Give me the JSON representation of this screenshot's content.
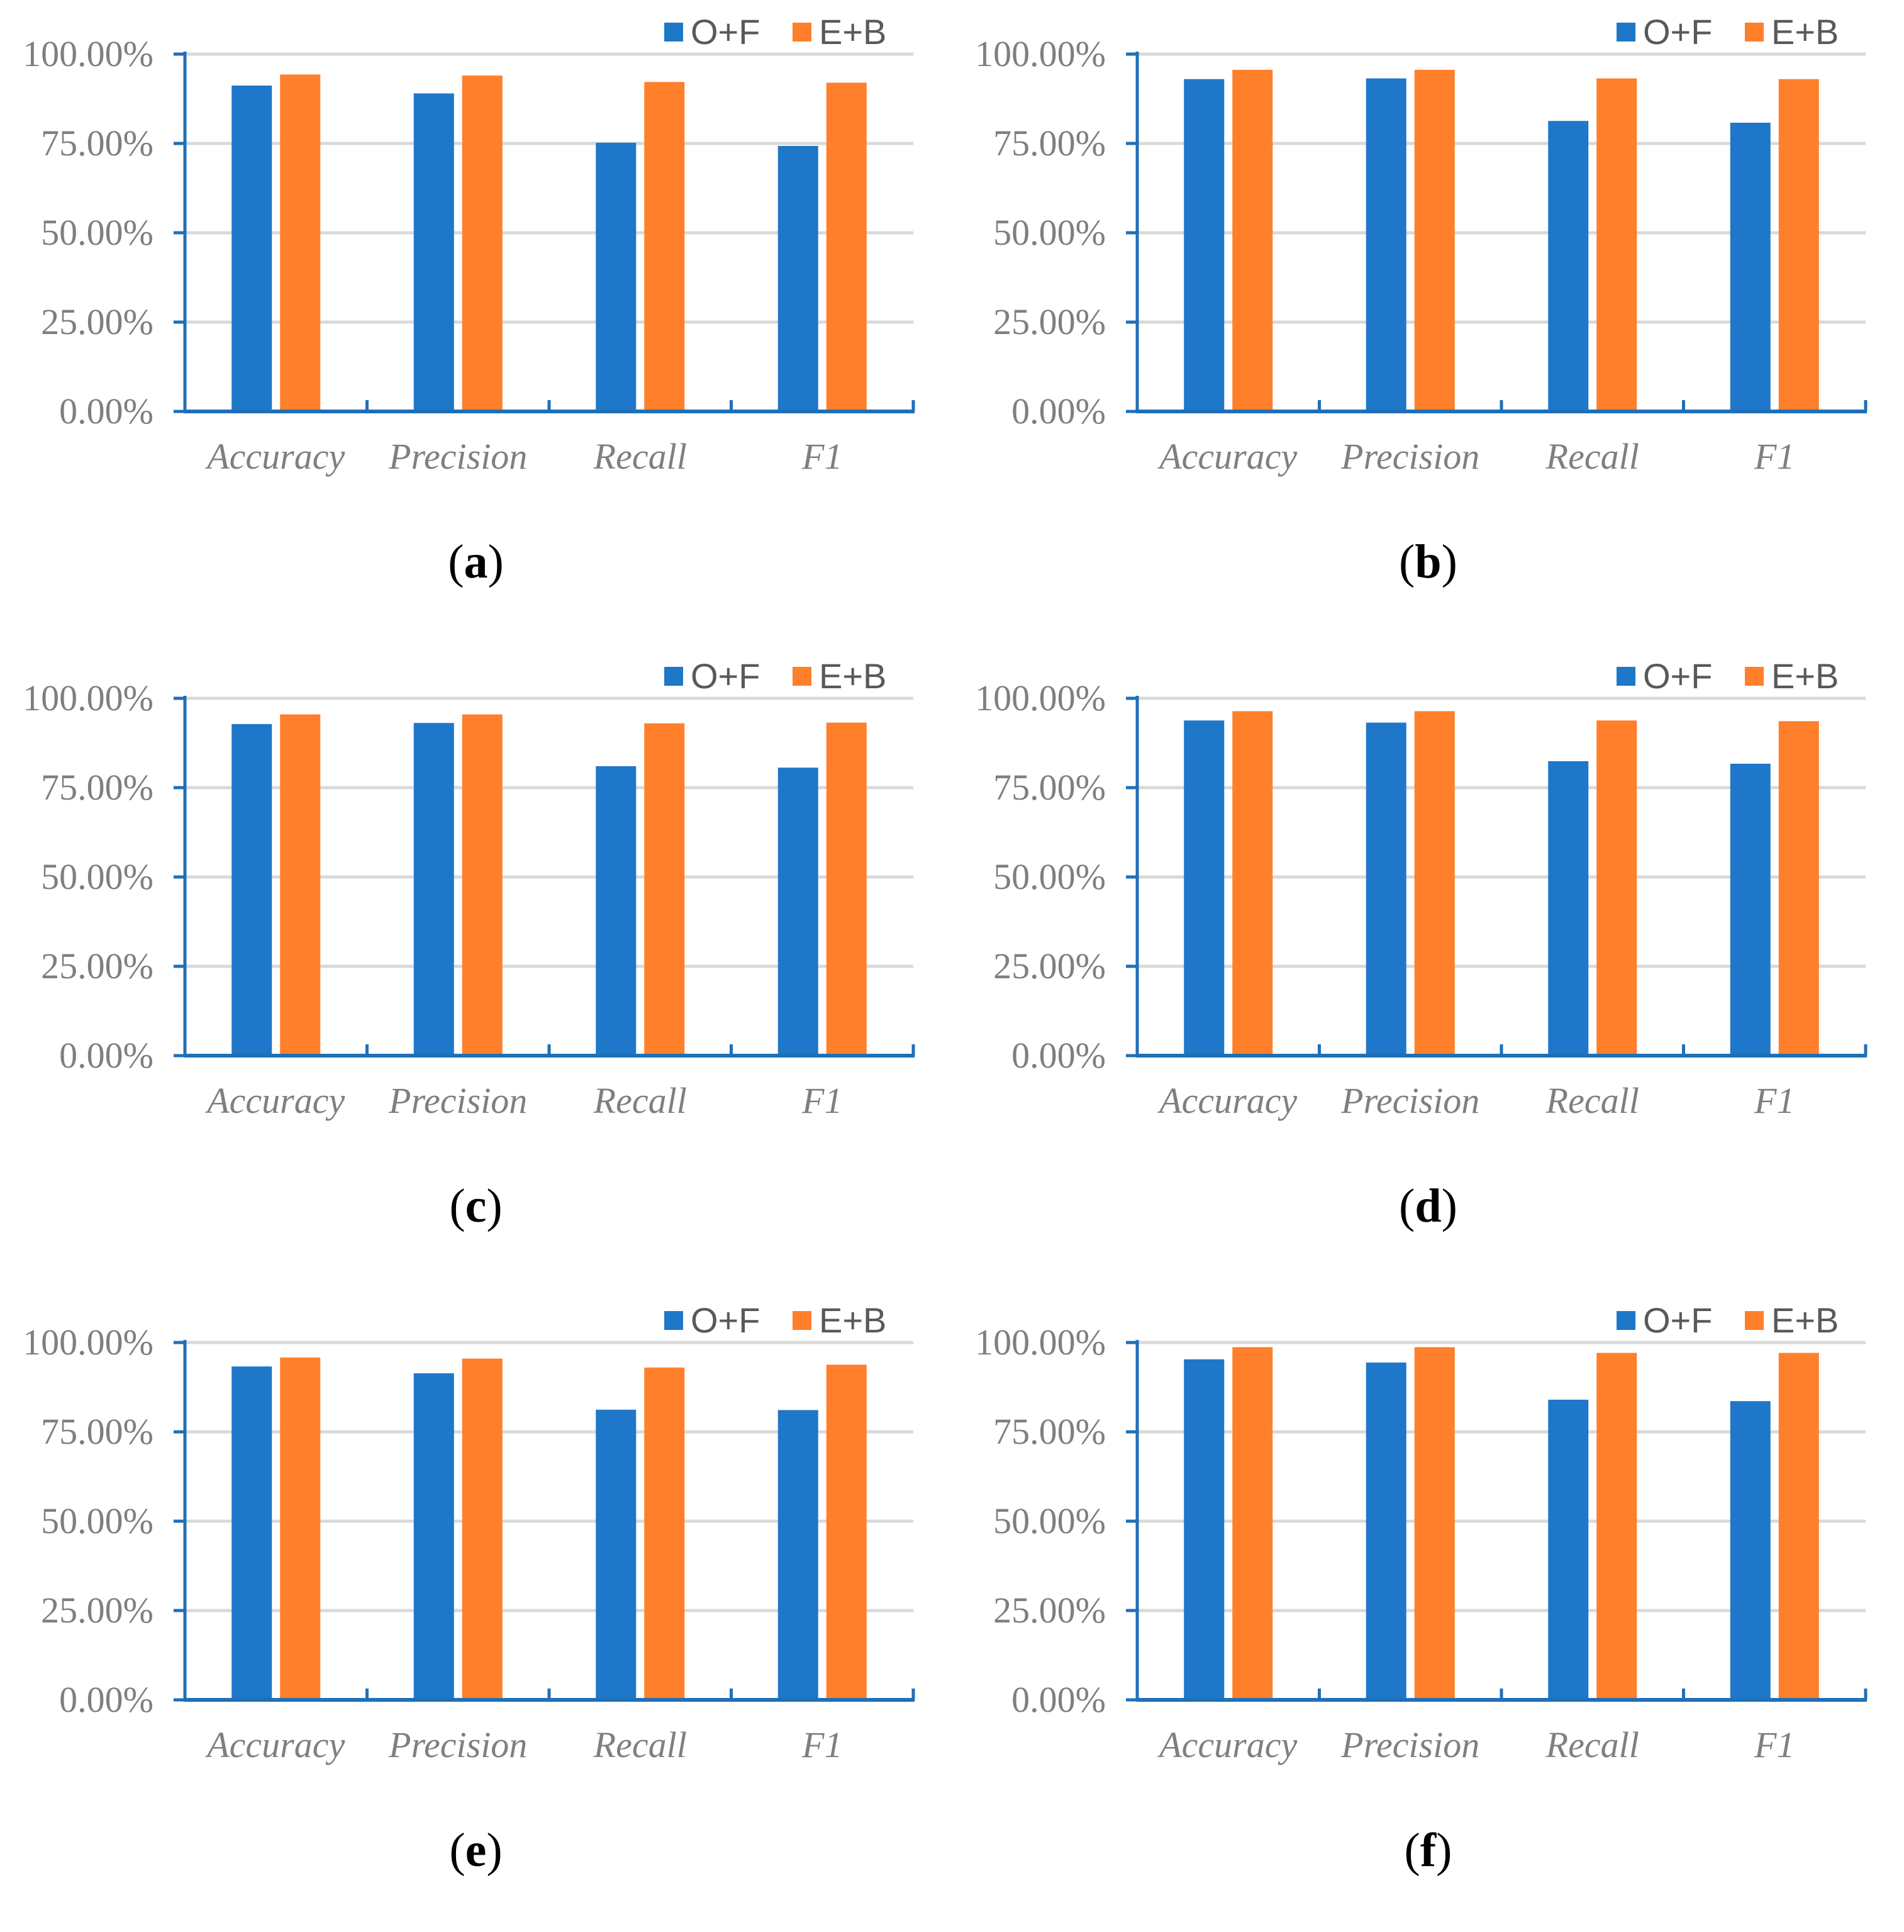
{
  "chart_data": [
    {
      "type": "bar",
      "caption_letter": "a",
      "categories": [
        "Accuracy",
        "Precision",
        "Recall",
        "F1"
      ],
      "series": [
        {
          "name": "O+F",
          "color": "#1f77c9",
          "values": [
            91.2,
            89.0,
            75.2,
            74.3
          ]
        },
        {
          "name": "E+B",
          "color": "#ff7f2a",
          "values": [
            94.3,
            94.0,
            92.2,
            92.0
          ]
        }
      ],
      "yticks": [
        "0.00%",
        "25.00%",
        "50.00%",
        "75.00%",
        "100.00%"
      ],
      "ylim": [
        0,
        100
      ],
      "legend": "top-right",
      "grid": true
    },
    {
      "type": "bar",
      "caption_letter": "b",
      "categories": [
        "Accuracy",
        "Precision",
        "Recall",
        "F1"
      ],
      "series": [
        {
          "name": "O+F",
          "color": "#1f77c9",
          "values": [
            93.0,
            93.2,
            81.3,
            80.8
          ]
        },
        {
          "name": "E+B",
          "color": "#ff7f2a",
          "values": [
            95.6,
            95.6,
            93.2,
            93.0
          ]
        }
      ],
      "yticks": [
        "0.00%",
        "25.00%",
        "50.00%",
        "75.00%",
        "100.00%"
      ],
      "ylim": [
        0,
        100
      ],
      "legend": "top-right",
      "grid": true
    },
    {
      "type": "bar",
      "caption_letter": "c",
      "categories": [
        "Accuracy",
        "Precision",
        "Recall",
        "F1"
      ],
      "series": [
        {
          "name": "O+F",
          "color": "#1f77c9",
          "values": [
            92.8,
            93.1,
            81.0,
            80.6
          ]
        },
        {
          "name": "E+B",
          "color": "#ff7f2a",
          "values": [
            95.5,
            95.5,
            93.0,
            93.2
          ]
        }
      ],
      "yticks": [
        "0.00%",
        "25.00%",
        "50.00%",
        "75.00%",
        "100.00%"
      ],
      "ylim": [
        0,
        100
      ],
      "legend": "top-right",
      "grid": true
    },
    {
      "type": "bar",
      "caption_letter": "d",
      "categories": [
        "Accuracy",
        "Precision",
        "Recall",
        "F1"
      ],
      "series": [
        {
          "name": "O+F",
          "color": "#1f77c9",
          "values": [
            93.8,
            93.2,
            82.4,
            81.7
          ]
        },
        {
          "name": "E+B",
          "color": "#ff7f2a",
          "values": [
            96.4,
            96.4,
            93.8,
            93.6
          ]
        }
      ],
      "yticks": [
        "0.00%",
        "25.00%",
        "50.00%",
        "75.00%",
        "100.00%"
      ],
      "ylim": [
        0,
        100
      ],
      "legend": "top-right",
      "grid": true
    },
    {
      "type": "bar",
      "caption_letter": "e",
      "categories": [
        "Accuracy",
        "Precision",
        "Recall",
        "F1"
      ],
      "series": [
        {
          "name": "O+F",
          "color": "#1f77c9",
          "values": [
            93.3,
            91.4,
            81.2,
            81.1
          ]
        },
        {
          "name": "E+B",
          "color": "#ff7f2a",
          "values": [
            95.8,
            95.5,
            93.0,
            93.8
          ]
        }
      ],
      "yticks": [
        "0.00%",
        "25.00%",
        "50.00%",
        "75.00%",
        "100.00%"
      ],
      "ylim": [
        0,
        100
      ],
      "legend": "top-right",
      "grid": true
    },
    {
      "type": "bar",
      "caption_letter": "f",
      "categories": [
        "Accuracy",
        "Precision",
        "Recall",
        "F1"
      ],
      "series": [
        {
          "name": "O+F",
          "color": "#1f77c9",
          "values": [
            95.3,
            94.4,
            84.0,
            83.6
          ]
        },
        {
          "name": "E+B",
          "color": "#ff7f2a",
          "values": [
            98.7,
            98.7,
            97.1,
            97.1
          ]
        }
      ],
      "yticks": [
        "0.00%",
        "25.00%",
        "50.00%",
        "75.00%",
        "100.00%"
      ],
      "ylim": [
        0,
        100
      ],
      "legend": "top-right",
      "grid": true
    }
  ]
}
